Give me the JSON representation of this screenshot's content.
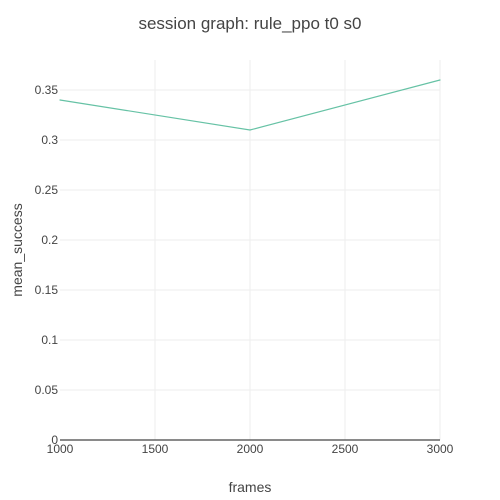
{
  "chart_data": {
    "type": "line",
    "title": "session graph: rule_ppo t0 s0",
    "xlabel": "frames",
    "ylabel": "mean_success",
    "xlim": [
      1000,
      3000
    ],
    "ylim": [
      0,
      0.38
    ],
    "x_ticks": [
      1000,
      1500,
      2000,
      2500,
      3000
    ],
    "x_tick_labels": [
      "1000",
      "1500",
      "2000",
      "2500",
      "3000"
    ],
    "y_ticks": [
      0,
      0.05,
      0.1,
      0.15,
      0.2,
      0.25,
      0.3,
      0.35
    ],
    "y_tick_labels": [
      "0",
      "0.05",
      "0.1",
      "0.15",
      "0.2",
      "0.25",
      "0.3",
      "0.35"
    ],
    "grid": true,
    "legend": "none",
    "series": [
      {
        "color": "#66c2a5",
        "x": [
          1000,
          2000,
          3000
        ],
        "y": [
          0.34,
          0.31,
          0.36
        ]
      }
    ]
  }
}
